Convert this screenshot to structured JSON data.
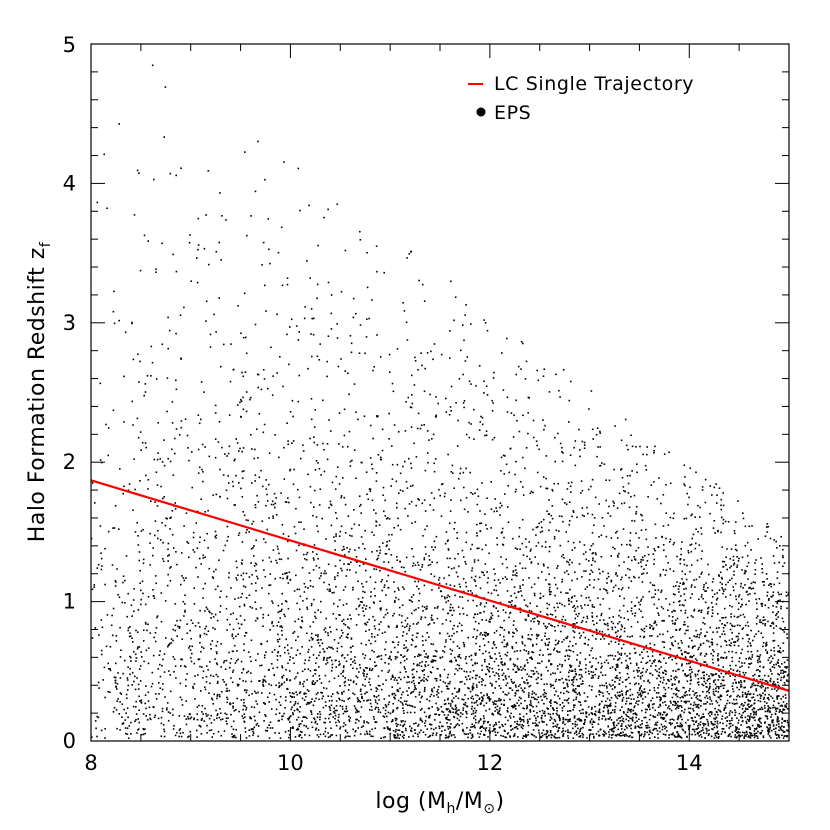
{
  "chart_data": {
    "type": "scatter",
    "title": "",
    "xlabel": "log (M_h/M_⊙)",
    "xlabel_parts": {
      "prefix": "log (M",
      "sub1": "h",
      "mid": "/M",
      "sub2": "⊙",
      "suffix": ")"
    },
    "ylabel": "Halo Formation Redshift z_f",
    "ylabel_parts": {
      "main": "Halo Formation Redshift z",
      "sub": "f"
    },
    "xlim": [
      8,
      15
    ],
    "ylim": [
      0,
      5
    ],
    "x_ticks": [
      "8",
      "10",
      "12",
      "14"
    ],
    "y_ticks": [
      "0",
      "1",
      "2",
      "3",
      "4",
      "5"
    ],
    "x_minor_step": 0.5,
    "y_minor_step": 0.2,
    "grid": false,
    "legend_position": "top-right",
    "series": [
      {
        "name": "LC Single Trajectory",
        "kind": "line",
        "color": "#ff0000",
        "x": [
          8,
          15
        ],
        "y": [
          1.87,
          0.36
        ]
      },
      {
        "name": "EPS",
        "kind": "scatter",
        "color": "#000000",
        "n_points": 7000,
        "density": "higher toward large mass and low redshift; upper envelope declines from z≈5 at log M=8 to z≈1.5 at log M=15",
        "description": "cloud of individual halo formation redshifts"
      }
    ]
  }
}
